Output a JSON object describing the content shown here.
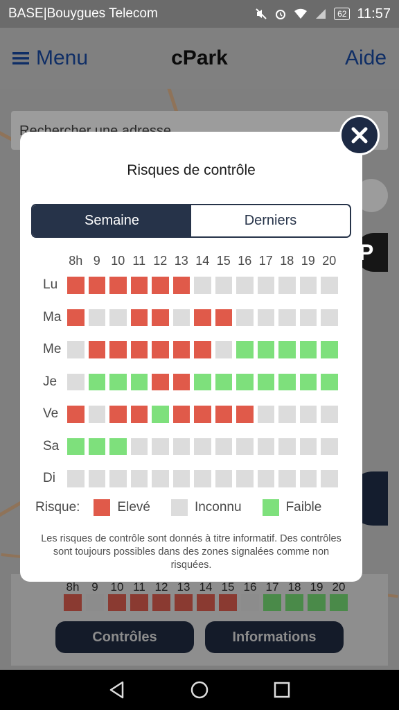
{
  "status_bar": {
    "carrier": "BASE|Bouygues Telecom",
    "battery": "62",
    "time": "11:57"
  },
  "header": {
    "menu_label": "Menu",
    "title": "cPark",
    "help_label": "Aide"
  },
  "background": {
    "search_placeholder": "Rechercher une adresse",
    "hours": [
      "8h",
      "9",
      "10",
      "11",
      "12",
      "13",
      "14",
      "15",
      "16",
      "17",
      "18",
      "19",
      "20"
    ],
    "today_risk": [
      "e",
      "u",
      "e",
      "e",
      "e",
      "e",
      "e",
      "e",
      "u",
      "f",
      "f",
      "f",
      "f"
    ],
    "controls_button": "Contrôles",
    "info_button": "Informations"
  },
  "modal": {
    "title": "Risques de contrôle",
    "tabs": [
      {
        "label": "Semaine",
        "active": true
      },
      {
        "label": "Derniers",
        "active": false
      }
    ],
    "hours": [
      "8h",
      "9",
      "10",
      "11",
      "12",
      "13",
      "14",
      "15",
      "16",
      "17",
      "18",
      "19",
      "20"
    ],
    "rows": [
      {
        "day": "Lu",
        "risk": [
          "e",
          "e",
          "e",
          "e",
          "e",
          "e",
          "u",
          "u",
          "u",
          "u",
          "u",
          "u",
          "u"
        ]
      },
      {
        "day": "Ma",
        "risk": [
          "e",
          "u",
          "u",
          "e",
          "e",
          "u",
          "e",
          "e",
          "u",
          "u",
          "u",
          "u",
          "u"
        ]
      },
      {
        "day": "Me",
        "risk": [
          "u",
          "e",
          "e",
          "e",
          "e",
          "e",
          "e",
          "u",
          "f",
          "f",
          "f",
          "f",
          "f"
        ]
      },
      {
        "day": "Je",
        "risk": [
          "u",
          "f",
          "f",
          "f",
          "e",
          "e",
          "f",
          "f",
          "f",
          "f",
          "f",
          "f",
          "f"
        ]
      },
      {
        "day": "Ve",
        "risk": [
          "e",
          "u",
          "e",
          "e",
          "f",
          "e",
          "e",
          "e",
          "e",
          "u",
          "u",
          "u",
          "u"
        ]
      },
      {
        "day": "Sa",
        "risk": [
          "f",
          "f",
          "f",
          "u",
          "u",
          "u",
          "u",
          "u",
          "u",
          "u",
          "u",
          "u",
          "u"
        ]
      },
      {
        "day": "Di",
        "risk": [
          "u",
          "u",
          "u",
          "u",
          "u",
          "u",
          "u",
          "u",
          "u",
          "u",
          "u",
          "u",
          "u"
        ]
      }
    ],
    "legend": {
      "label": "Risque:",
      "high": "Elevé",
      "unknown": "Inconnu",
      "low": "Faible"
    },
    "disclaimer": "Les risques de contrôle sont donnés à titre informatif. Des contrôles sont toujours possibles dans des zones signalées comme non risquées."
  },
  "colors": {
    "high": "#e05a4a",
    "unknown": "#dcdcdc",
    "low": "#7ee07c",
    "high_dim": "#8a3a31",
    "unknown_dim": "#8c8c8c",
    "low_dim": "#4a8a49",
    "navy": "#263349"
  }
}
